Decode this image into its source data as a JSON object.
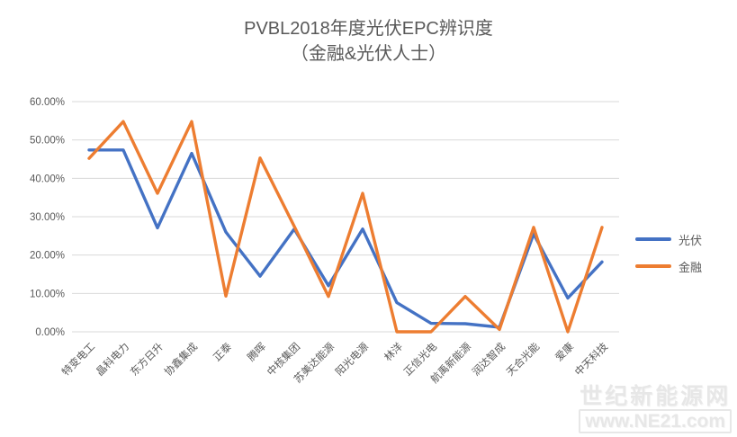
{
  "title": {
    "line1": "PVBL2018年度光伏EPC辨识度",
    "line2": "（金融&光伏人士）"
  },
  "watermark": {
    "line1": "世纪新能源网",
    "line2": "www.NE21.com"
  },
  "chart_data": {
    "type": "line",
    "title": "PVBL2018年度光伏EPC辨识度（金融&光伏人士）",
    "categories": [
      "特变电工",
      "晶科电力",
      "东方日升",
      "协鑫集成",
      "正泰",
      "腾晖",
      "中核集团",
      "苏美达能源",
      "阳光电源",
      "林洋",
      "正信光电",
      "航禹新能源",
      "润达智成",
      "天合光能",
      "爱康",
      "中天科技"
    ],
    "series": [
      {
        "key": "pv",
        "name": "光伏",
        "color": "#4472C4",
        "values": [
          47.4,
          47.4,
          27.1,
          46.5,
          26.0,
          14.5,
          26.8,
          12.0,
          26.8,
          7.6,
          2.2,
          2.1,
          1.2,
          25.5,
          8.8,
          18.2
        ]
      },
      {
        "key": "finance",
        "name": "金融",
        "color": "#ED7D31",
        "values": [
          45.2,
          54.8,
          36.1,
          54.8,
          9.3,
          45.3,
          27.5,
          9.2,
          36.1,
          0.0,
          0.0,
          9.2,
          0.6,
          27.2,
          0.0,
          27.2
        ]
      }
    ],
    "ylabel": "",
    "xlabel": "",
    "ylim": [
      0,
      60
    ],
    "y_tick_step": 10,
    "y_ticks": [
      "0.00%",
      "10.00%",
      "20.00%",
      "30.00%",
      "40.00%",
      "50.00%",
      "60.00%"
    ],
    "grid": true,
    "gridline_color": "#d9d9d9",
    "legend_position": "right"
  }
}
